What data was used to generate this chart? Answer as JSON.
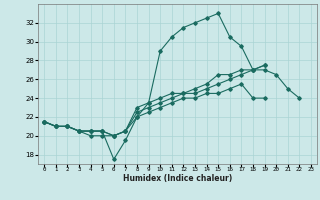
{
  "xlabel": "Humidex (Indice chaleur)",
  "background_color": "#cce8e8",
  "line_color": "#1a6b60",
  "grid_color": "#aad4d4",
  "x": [
    0,
    1,
    2,
    3,
    4,
    5,
    6,
    7,
    8,
    9,
    10,
    11,
    12,
    13,
    14,
    15,
    16,
    17,
    18,
    19,
    20,
    21,
    22,
    23
  ],
  "series1": [
    21.5,
    21.0,
    21.0,
    20.5,
    20.5,
    20.5,
    17.5,
    19.5,
    22.0,
    23.5,
    29.0,
    30.5,
    31.5,
    32.0,
    32.5,
    33.0,
    30.5,
    29.5,
    27.0,
    27.0,
    26.5,
    25.0,
    24.0,
    null
  ],
  "series2": [
    21.5,
    21.0,
    21.0,
    20.5,
    20.5,
    20.5,
    20.0,
    20.5,
    23.0,
    23.5,
    24.0,
    24.5,
    24.5,
    25.0,
    25.5,
    26.5,
    26.5,
    27.0,
    27.0,
    27.5,
    null,
    null,
    null,
    null
  ],
  "series3": [
    21.5,
    21.0,
    21.0,
    20.5,
    20.5,
    20.5,
    20.0,
    20.5,
    22.5,
    23.0,
    23.5,
    24.0,
    24.5,
    24.5,
    25.0,
    25.5,
    26.0,
    26.5,
    27.0,
    27.5,
    null,
    null,
    null,
    null
  ],
  "series4": [
    21.5,
    21.0,
    21.0,
    20.5,
    20.0,
    20.0,
    20.0,
    20.5,
    22.0,
    22.5,
    23.0,
    23.5,
    24.0,
    24.0,
    24.5,
    24.5,
    25.0,
    25.5,
    24.0,
    24.0,
    null,
    null,
    null,
    null
  ],
  "ylim": [
    17,
    34
  ],
  "xlim": [
    -0.5,
    23.5
  ],
  "yticks": [
    18,
    20,
    22,
    24,
    26,
    28,
    30,
    32
  ],
  "xticks": [
    0,
    1,
    2,
    3,
    4,
    5,
    6,
    7,
    8,
    9,
    10,
    11,
    12,
    13,
    14,
    15,
    16,
    17,
    18,
    19,
    20,
    21,
    22,
    23
  ]
}
